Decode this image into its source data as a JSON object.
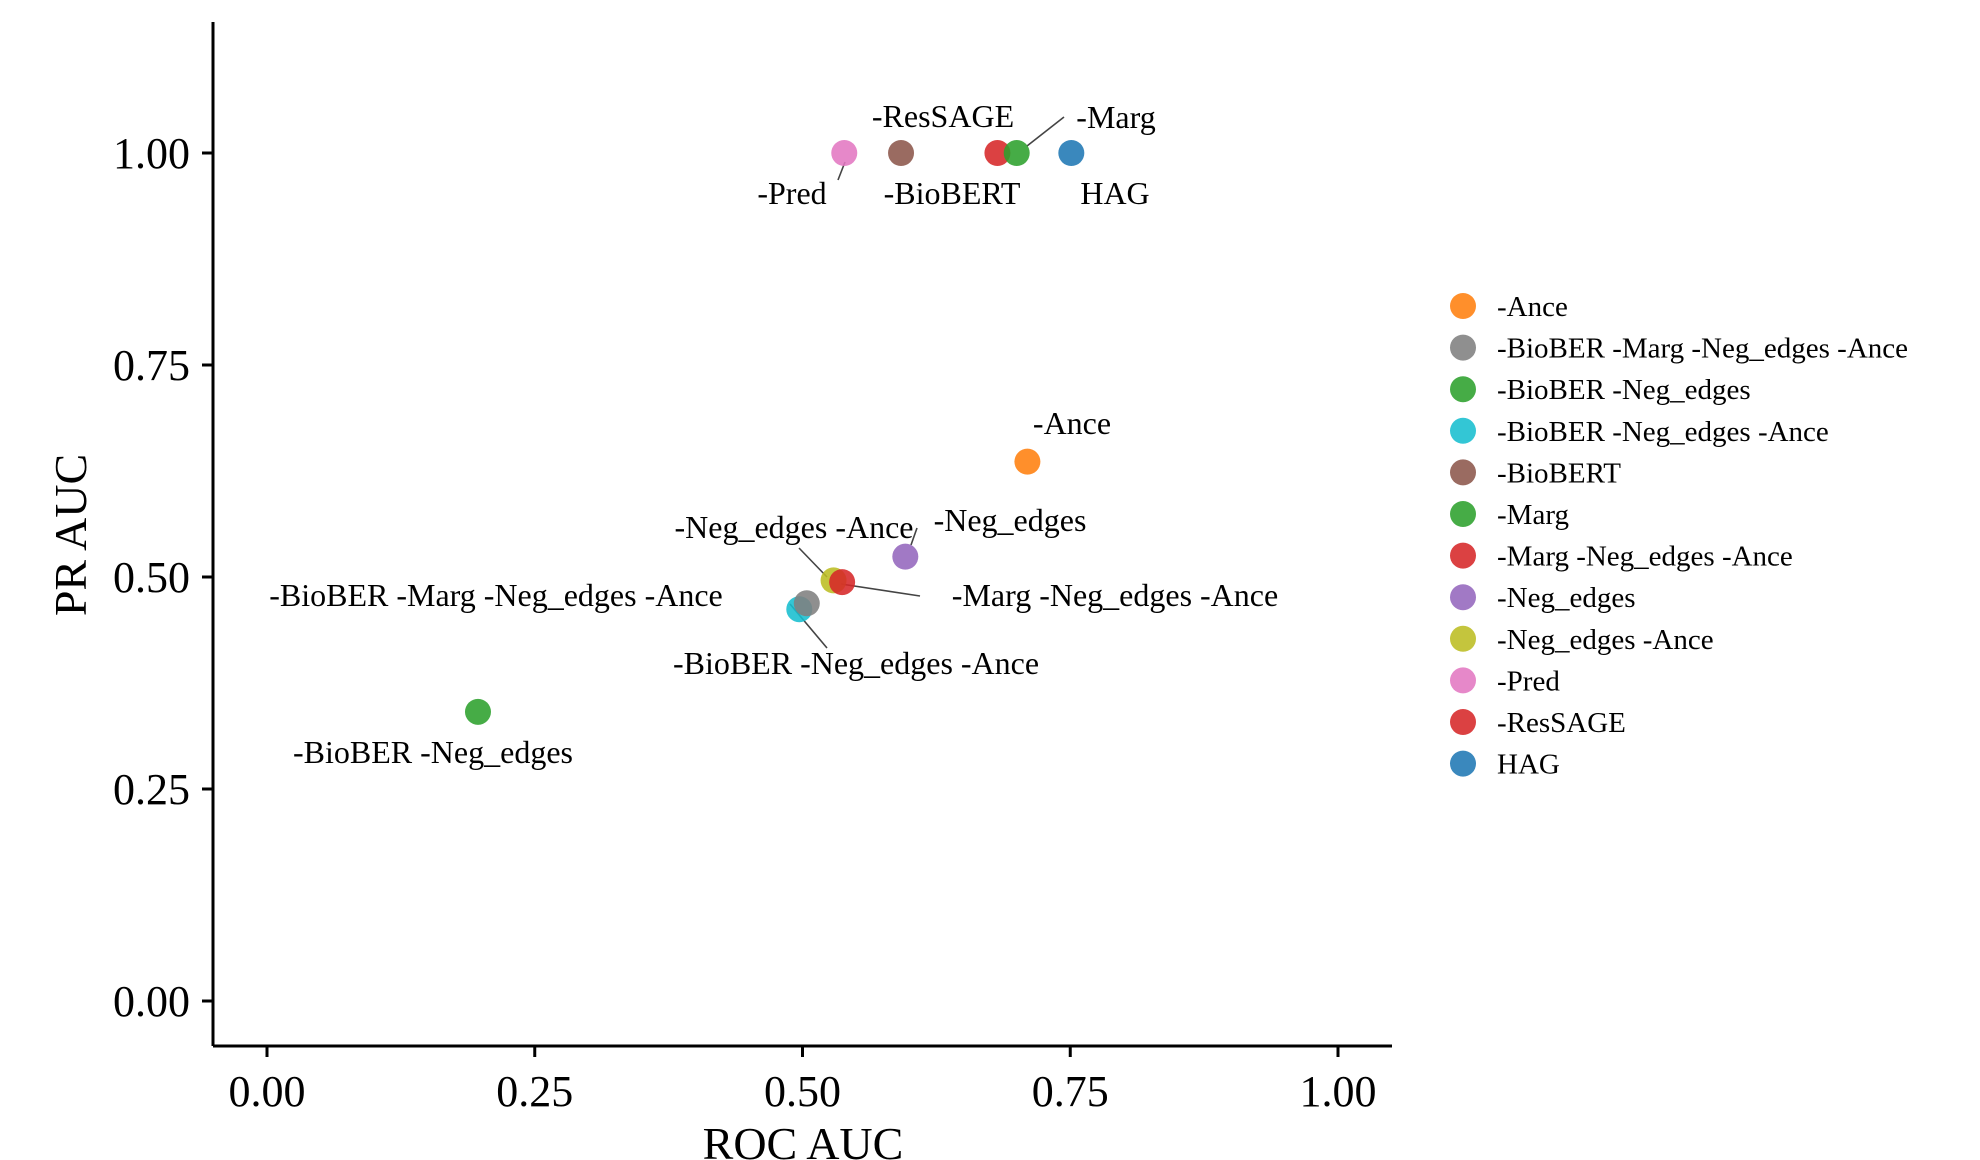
{
  "chart_data": {
    "type": "scatter",
    "title": "",
    "xlabel": "ROC AUC",
    "ylabel": "PR AUC",
    "xlim": [
      -0.05,
      1.05
    ],
    "ylim": [
      -0.05,
      1.15
    ],
    "x_ticks": [
      "0.00",
      "0.25",
      "0.50",
      "0.75",
      "1.00"
    ],
    "y_ticks": [
      "0.00",
      "0.25",
      "0.50",
      "0.75",
      "1.00"
    ],
    "grid": false,
    "legend_position": "right",
    "series": [
      {
        "name": "-Ance",
        "color": "#ff7f0e",
        "x": 0.71,
        "y": 0.636,
        "label": "-Ance"
      },
      {
        "name": "-BioBER -Marg -Neg_edges -Ance",
        "color": "#7f7f7f",
        "x": 0.504,
        "y": 0.469,
        "label": "-BioBER -Marg -Neg_edges -Ance"
      },
      {
        "name": "-BioBER -Neg_edges",
        "color": "#2ca02c",
        "x": 0.197,
        "y": 0.341,
        "label": "-BioBER -Neg_edges"
      },
      {
        "name": "-BioBER -Neg_edges -Ance",
        "color": "#17becf",
        "x": 0.497,
        "y": 0.462,
        "label": "-BioBER -Neg_edges -Ance"
      },
      {
        "name": "-BioBERT",
        "color": "#8c564b",
        "x": 0.592,
        "y": 1.0,
        "label": "-BioBERT"
      },
      {
        "name": "-Marg",
        "color": "#2ca02c",
        "x": 0.7,
        "y": 1.0,
        "label": "-Marg"
      },
      {
        "name": "-Marg -Neg_edges -Ance",
        "color": "#d62728",
        "x": 0.537,
        "y": 0.494,
        "label": "-Marg -Neg_edges -Ance"
      },
      {
        "name": "-Neg_edges",
        "color": "#9467bd",
        "x": 0.596,
        "y": 0.524,
        "label": "-Neg_edges"
      },
      {
        "name": "-Neg_edges -Ance",
        "color": "#bcbd22",
        "x": 0.529,
        "y": 0.496,
        "label": "-Neg_edges -Ance"
      },
      {
        "name": "-Pred",
        "color": "#e377c2",
        "x": 0.539,
        "y": 1.0,
        "label": "-Pred"
      },
      {
        "name": "-ResSAGE",
        "color": "#d62728",
        "x": 0.682,
        "y": 1.0,
        "label": "-ResSAGE"
      },
      {
        "name": "HAG",
        "color": "#1f77b4",
        "x": 0.751,
        "y": 1.0,
        "label": "HAG"
      }
    ]
  }
}
